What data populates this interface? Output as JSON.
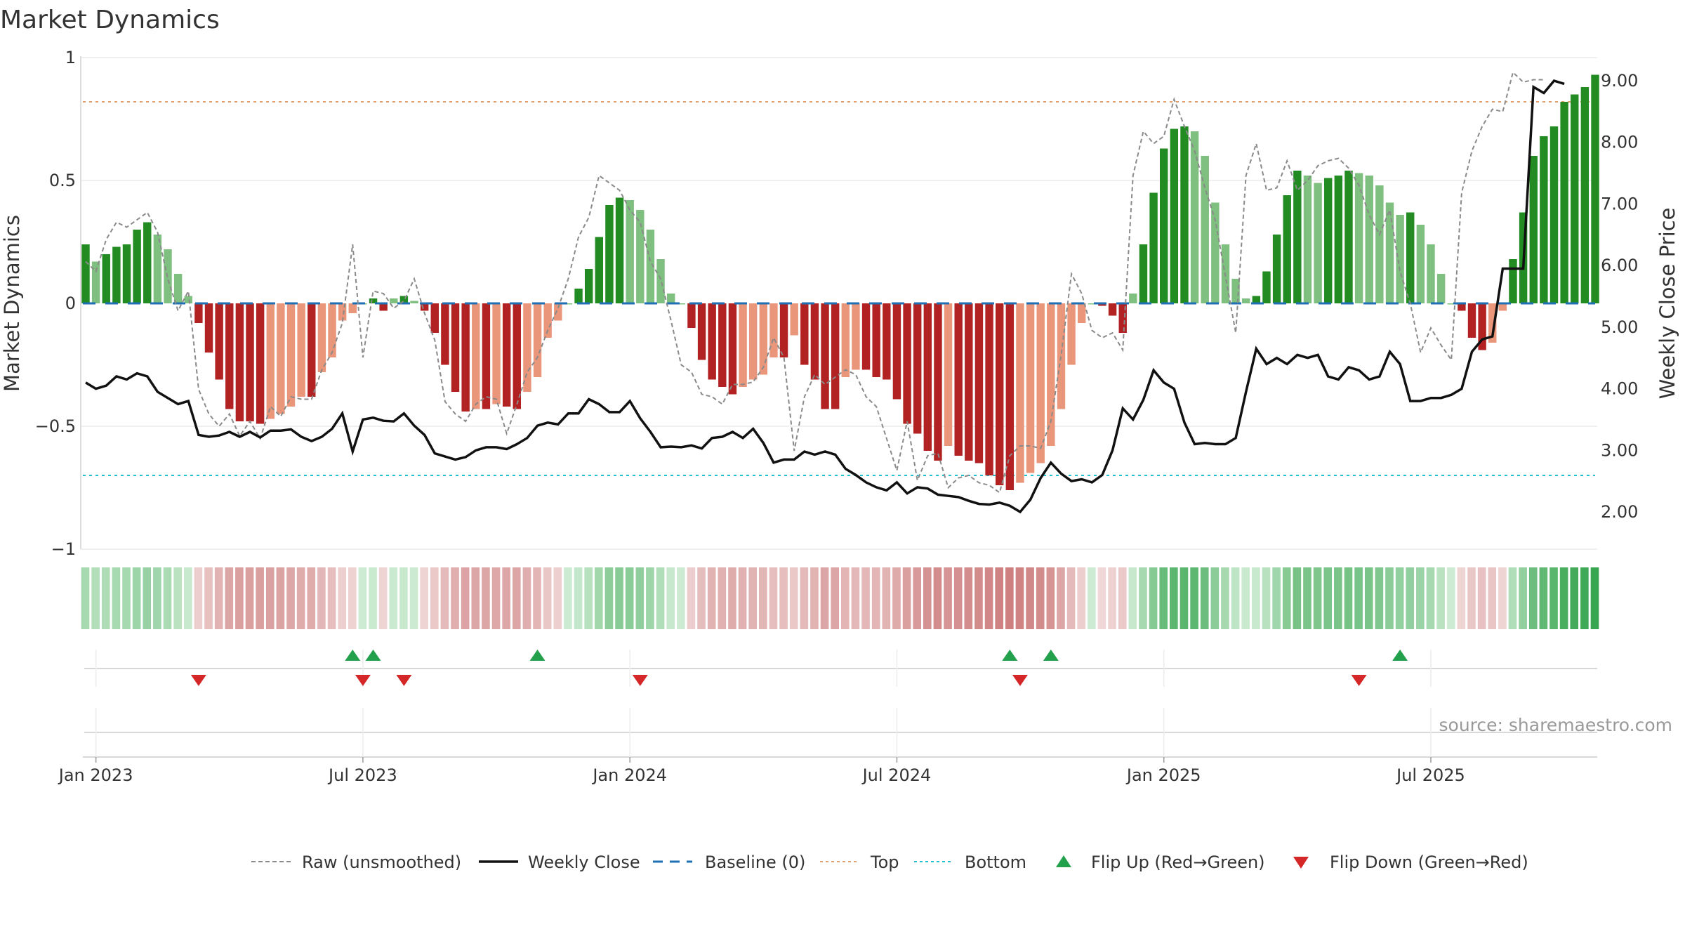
{
  "chart_data": {
    "type": "bar",
    "title": "Market Dynamics",
    "y_left_label": "Market Dynamics",
    "y_right_label": "Weekly Close Price",
    "y_left_ticks": [
      "1",
      "0.5",
      "0",
      "−0.5",
      "−1"
    ],
    "y_right_ticks": [
      "9.00",
      "8.00",
      "7.00",
      "6.00",
      "5.00",
      "4.00",
      "3.00",
      "2.00"
    ],
    "x_ticks": [
      "Jan 2023",
      "Jul 2023",
      "Jan 2024",
      "Jul 2024",
      "Jan 2025",
      "Jul 2025"
    ],
    "ylim_left": [
      -1,
      1
    ],
    "ylim_right": [
      1.0,
      9.4
    ],
    "top_level": 0.82,
    "bottom_level": -0.7,
    "baseline": 0,
    "start_date": "2022-12-26",
    "week_index_of_x_ticks": [
      1,
      27,
      53,
      79,
      105,
      131
    ],
    "bars": [
      0.24,
      0.17,
      0.2,
      0.23,
      0.24,
      0.3,
      0.33,
      0.28,
      0.22,
      0.12,
      0.03,
      -0.08,
      -0.2,
      -0.31,
      -0.43,
      -0.48,
      -0.48,
      -0.49,
      -0.47,
      -0.45,
      -0.42,
      -0.38,
      -0.38,
      -0.28,
      -0.22,
      -0.07,
      -0.04,
      0.0,
      0.02,
      -0.03,
      0.02,
      0.03,
      0.01,
      -0.03,
      -0.12,
      -0.25,
      -0.36,
      -0.44,
      -0.43,
      -0.43,
      -0.41,
      -0.42,
      -0.43,
      -0.36,
      -0.3,
      -0.14,
      -0.07,
      0.0,
      0.06,
      0.14,
      0.27,
      0.4,
      0.43,
      0.42,
      0.38,
      0.3,
      0.18,
      0.04,
      0.0,
      -0.1,
      -0.23,
      -0.31,
      -0.34,
      -0.37,
      -0.34,
      -0.31,
      -0.29,
      -0.22,
      -0.22,
      -0.13,
      -0.25,
      -0.31,
      -0.43,
      -0.43,
      -0.3,
      -0.27,
      -0.27,
      -0.3,
      -0.31,
      -0.39,
      -0.49,
      -0.53,
      -0.6,
      -0.64,
      -0.58,
      -0.62,
      -0.64,
      -0.65,
      -0.7,
      -0.74,
      -0.76,
      -0.73,
      -0.69,
      -0.65,
      -0.58,
      -0.43,
      -0.25,
      -0.08,
      0.0,
      -0.01,
      -0.05,
      -0.12,
      0.04,
      0.24,
      0.45,
      0.63,
      0.71,
      0.72,
      0.7,
      0.6,
      0.41,
      0.24,
      0.1,
      0.02,
      0.03,
      0.13,
      0.28,
      0.44,
      0.54,
      0.52,
      0.49,
      0.51,
      0.52,
      0.54,
      0.53,
      0.52,
      0.48,
      0.41,
      0.36,
      0.37,
      0.32,
      0.24,
      0.12,
      0.0,
      -0.03,
      -0.14,
      -0.19,
      -0.16,
      -0.03,
      0.18,
      0.37,
      0.6,
      0.68,
      0.72,
      0.82,
      0.85,
      0.88,
      0.93
    ],
    "raw": [
      0.17,
      0.13,
      0.26,
      0.33,
      0.31,
      0.34,
      0.37,
      0.29,
      0.1,
      -0.03,
      0.05,
      -0.35,
      -0.45,
      -0.5,
      -0.45,
      -0.54,
      -0.48,
      -0.55,
      -0.42,
      -0.46,
      -0.38,
      -0.39,
      -0.39,
      -0.27,
      -0.2,
      -0.08,
      0.24,
      -0.22,
      0.05,
      0.04,
      -0.02,
      0.01,
      0.1,
      -0.04,
      -0.15,
      -0.4,
      -0.45,
      -0.48,
      -0.41,
      -0.38,
      -0.39,
      -0.53,
      -0.41,
      -0.28,
      -0.22,
      -0.11,
      -0.02,
      0.1,
      0.27,
      0.35,
      0.52,
      0.49,
      0.46,
      0.38,
      0.33,
      0.17,
      0.1,
      -0.07,
      -0.25,
      -0.28,
      -0.37,
      -0.38,
      -0.41,
      -0.33,
      -0.33,
      -0.32,
      -0.26,
      -0.14,
      -0.22,
      -0.6,
      -0.38,
      -0.29,
      -0.33,
      -0.3,
      -0.27,
      -0.29,
      -0.38,
      -0.42,
      -0.55,
      -0.68,
      -0.48,
      -0.72,
      -0.62,
      -0.61,
      -0.75,
      -0.71,
      -0.7,
      -0.73,
      -0.74,
      -0.77,
      -0.62,
      -0.58,
      -0.58,
      -0.59,
      -0.48,
      -0.21,
      0.12,
      0.04,
      -0.11,
      -0.14,
      -0.12,
      -0.19,
      0.52,
      0.7,
      0.65,
      0.68,
      0.83,
      0.72,
      0.62,
      0.47,
      0.34,
      0.11,
      -0.12,
      0.52,
      0.65,
      0.46,
      0.47,
      0.58,
      0.46,
      0.5,
      0.56,
      0.58,
      0.59,
      0.55,
      0.48,
      0.36,
      0.28,
      0.38,
      0.13,
      0.0,
      -0.2,
      -0.1,
      -0.17,
      -0.23,
      0.45,
      0.62,
      0.72,
      0.79,
      0.78,
      0.94,
      0.9,
      0.91,
      0.91
    ],
    "close": [
      4.1,
      4.0,
      4.05,
      4.2,
      4.15,
      4.25,
      4.2,
      3.95,
      3.85,
      3.75,
      3.8,
      3.25,
      3.22,
      3.24,
      3.3,
      3.22,
      3.3,
      3.21,
      3.32,
      3.32,
      3.34,
      3.22,
      3.15,
      3.22,
      3.35,
      3.6,
      2.98,
      3.5,
      3.53,
      3.48,
      3.47,
      3.6,
      3.4,
      3.25,
      2.95,
      2.9,
      2.85,
      2.89,
      3.0,
      3.05,
      3.05,
      3.02,
      3.1,
      3.2,
      3.4,
      3.45,
      3.42,
      3.6,
      3.6,
      3.83,
      3.75,
      3.62,
      3.62,
      3.8,
      3.52,
      3.3,
      3.05,
      3.06,
      3.05,
      3.08,
      3.03,
      3.2,
      3.22,
      3.3,
      3.2,
      3.35,
      3.12,
      2.8,
      2.85,
      2.85,
      2.98,
      2.93,
      2.98,
      2.93,
      2.7,
      2.6,
      2.48,
      2.4,
      2.35,
      2.48,
      2.3,
      2.4,
      2.38,
      2.28,
      2.26,
      2.24,
      2.18,
      2.13,
      2.12,
      2.15,
      2.1,
      2.0,
      2.2,
      2.55,
      2.8,
      2.62,
      2.5,
      2.53,
      2.48,
      2.6,
      3.0,
      3.68,
      3.5,
      3.82,
      4.3,
      4.1,
      4.0,
      3.45,
      3.1,
      3.12,
      3.1,
      3.1,
      3.2,
      3.95,
      4.65,
      4.4,
      4.5,
      4.4,
      4.55,
      4.5,
      4.55,
      4.2,
      4.15,
      4.35,
      4.3,
      4.15,
      4.2,
      4.6,
      4.4,
      3.8,
      3.8,
      3.85,
      3.85,
      3.9,
      4.0,
      4.6,
      4.8,
      4.85,
      5.95,
      5.95,
      5.95,
      8.9,
      8.8,
      9.0,
      8.95
    ],
    "flip_up_weeks": [
      26,
      28,
      44,
      90,
      94,
      128
    ],
    "flip_down_weeks": [
      11,
      27,
      31,
      54,
      91,
      124
    ]
  },
  "legend": [
    {
      "label": "Raw (unsmoothed)",
      "icon": "dashed-gray-line"
    },
    {
      "label": "Weekly Close",
      "icon": "solid-black-line"
    },
    {
      "label": "Baseline (0)",
      "icon": "dashed-blue-line"
    },
    {
      "label": "Top",
      "icon": "dotted-orange-line"
    },
    {
      "label": "Bottom",
      "icon": "dotted-cyan-line"
    },
    {
      "label": "Flip Up (Red→Green)",
      "icon": "green-triangle-up"
    },
    {
      "label": "Flip Down (Green→Red)",
      "icon": "red-triangle-down"
    }
  ],
  "source": "source: sharemaestro.com",
  "colors": {
    "green_strong": "#228b22",
    "green_light": "#7fbf7f",
    "red_strong": "#b22222",
    "red_light": "#e9967a",
    "raw_line": "#8a8a8a",
    "close_line": "#111111",
    "baseline": "#1f6fb4",
    "top": "#e0a070",
    "bottom": "#22c0d0",
    "flip_up": "#22a04b",
    "flip_down": "#d62728"
  }
}
